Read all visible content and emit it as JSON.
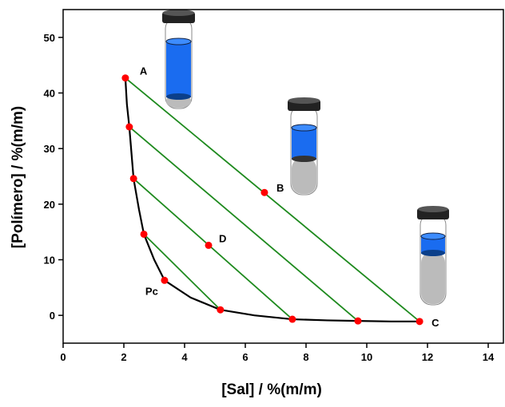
{
  "chart_data": {
    "type": "line",
    "xlabel": "[Sal] / %(m/m)",
    "ylabel": "[Polímero] / %(m/m)",
    "xlim": [
      0,
      14.5
    ],
    "ylim": [
      -5,
      55
    ],
    "xticks": [
      0,
      2,
      4,
      6,
      8,
      10,
      12,
      14
    ],
    "yticks": [
      0,
      10,
      20,
      30,
      40,
      50
    ],
    "series": [
      {
        "mode": "line",
        "color": "#000000",
        "x": [
          2.05,
          2.1,
          2.18,
          2.32,
          2.5,
          2.66,
          3.0,
          3.34,
          4.2,
          5.18,
          6.3,
          7.55,
          8.7,
          9.71,
          10.8,
          11.74
        ],
        "y": [
          42.7,
          38,
          33.9,
          24.6,
          19,
          14.6,
          10,
          6.3,
          3.2,
          1.0,
          0,
          -0.7,
          -0.9,
          -1.0,
          -1.1,
          -1.1
        ]
      },
      {
        "mode": "line",
        "color": "#1e8a1e",
        "x": [
          2.05,
          11.74
        ],
        "y": [
          42.7,
          -1.1
        ]
      },
      {
        "mode": "line",
        "color": "#1e8a1e",
        "x": [
          2.18,
          9.71
        ],
        "y": [
          33.9,
          -1.0
        ]
      },
      {
        "mode": "line",
        "color": "#1e8a1e",
        "x": [
          2.32,
          7.55
        ],
        "y": [
          24.6,
          -0.7
        ]
      },
      {
        "mode": "line",
        "color": "#1e8a1e",
        "x": [
          2.66,
          5.18
        ],
        "y": [
          14.6,
          1.0
        ]
      },
      {
        "mode": "markers",
        "color": "#ff0000",
        "x": [
          2.05,
          2.18,
          2.32,
          2.66,
          3.34,
          5.18,
          7.55,
          9.71,
          11.74,
          6.63,
          4.79
        ],
        "y": [
          42.7,
          33.9,
          24.6,
          14.6,
          6.3,
          1.0,
          -0.7,
          -1.0,
          -1.1,
          22.1,
          12.6
        ],
        "labels": [
          "A",
          null,
          null,
          null,
          "Pc",
          null,
          null,
          null,
          "C",
          "B",
          "D"
        ]
      }
    ]
  }
}
